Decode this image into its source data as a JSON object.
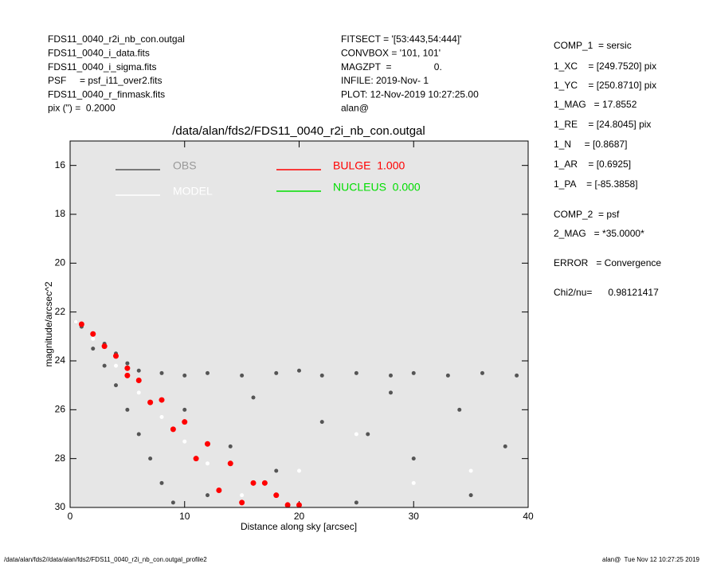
{
  "header_left": [
    "FDS11_0040_r2i_nb_con.outgal",
    "FDS11_0040_i_data.fits",
    "FDS11_0040_i_sigma.fits",
    "PSF     = psf_i11_over2.fits",
    "FDS11_0040_r_finmask.fits",
    "pix (\") =  0.2000"
  ],
  "header_middle": [
    "FITSECT = '[53:443,54:444]'",
    "CONVBOX = '101, 101'",
    "MAGZPT  =                0.",
    "INFILE: 2019-Nov- 1",
    "PLOT: 12-Nov-2019 10:27:25.00",
    "alan@"
  ],
  "parameters": [
    "COMP_1  = sersic",
    "1_XC    = [249.7520] pix",
    "1_YC    = [250.8710] pix",
    "1_MAG   = 17.8552",
    "1_RE    = [24.8045] pix",
    "1_N     = [0.8687]",
    "1_AR    = [0.6925]",
    "1_PA    = [-85.3858]",
    "COMP_2  = psf",
    "2_MAG   = *35.0000*",
    "ERROR   = Convergence",
    "Chi2/nu=      0.98121417"
  ],
  "footer_left": "/data/alan/fds2//data/alan/fds2/FDS11_0040_r2i_nb_con.outgal_profile2",
  "footer_right": "alan@  Tue Nov 12 10:27:25 2019",
  "chart_data": {
    "type": "scatter",
    "title": "/data/alan/fds2/FDS11_0040_r2i_nb_con.outgal",
    "x_label": "Distance along sky [arcsec]",
    "y_label": "magnitude/arcsec^2",
    "xlim": [
      0,
      40
    ],
    "ylim": [
      30,
      15
    ],
    "xticks": [
      0,
      10,
      20,
      30,
      40
    ],
    "yticks": [
      16,
      18,
      20,
      22,
      24,
      26,
      28,
      30
    ],
    "series": [
      {
        "name": "OBS",
        "color": "#555555",
        "x": [
          0.5,
          1,
          2,
          3,
          4,
          5,
          6,
          8,
          10,
          12,
          15,
          18,
          20,
          22,
          25,
          28,
          30,
          33,
          36,
          39,
          2,
          3,
          4,
          5,
          6,
          7,
          8,
          9,
          10,
          14,
          18,
          22,
          26,
          30,
          34,
          38,
          12,
          25,
          35,
          16,
          28
        ],
        "values": [
          22.4,
          22.6,
          22.9,
          23.3,
          23.7,
          24.1,
          24.4,
          24.5,
          24.6,
          24.5,
          24.6,
          24.5,
          24.4,
          24.6,
          24.5,
          24.6,
          24.5,
          24.6,
          24.5,
          24.6,
          23.5,
          24.2,
          25.0,
          26.0,
          27.0,
          28.0,
          29.0,
          29.8,
          26,
          27.5,
          28.5,
          26.5,
          27,
          28,
          26,
          27.5,
          29.5,
          29.8,
          29.5,
          25.5,
          25.3
        ]
      },
      {
        "name": "MODEL",
        "color": "#ffffff",
        "x": [
          0.5,
          2,
          4,
          6,
          8,
          10,
          12,
          15,
          20,
          30,
          25,
          35
        ],
        "values": [
          22.4,
          23.1,
          24.2,
          25.3,
          26.3,
          27.3,
          28.2,
          29.5,
          28.5,
          29.0,
          27,
          28.5
        ]
      },
      {
        "name": "BULGE  1.000",
        "color": "#ff0000",
        "x": [
          1,
          2,
          3,
          4,
          5,
          6,
          8,
          10,
          12,
          14,
          16,
          18,
          20,
          5,
          7,
          9,
          11,
          13,
          15,
          17,
          19
        ],
        "values": [
          22.5,
          22.9,
          23.4,
          23.8,
          24.3,
          24.8,
          25.6,
          26.5,
          27.4,
          28.2,
          29,
          29.5,
          29.9,
          24.6,
          25.7,
          26.8,
          28.0,
          29.3,
          29.8,
          29.0,
          29.9
        ]
      },
      {
        "name": "NUCLEUS  0.000",
        "color": "#00dd00",
        "x": [],
        "values": []
      }
    ]
  }
}
